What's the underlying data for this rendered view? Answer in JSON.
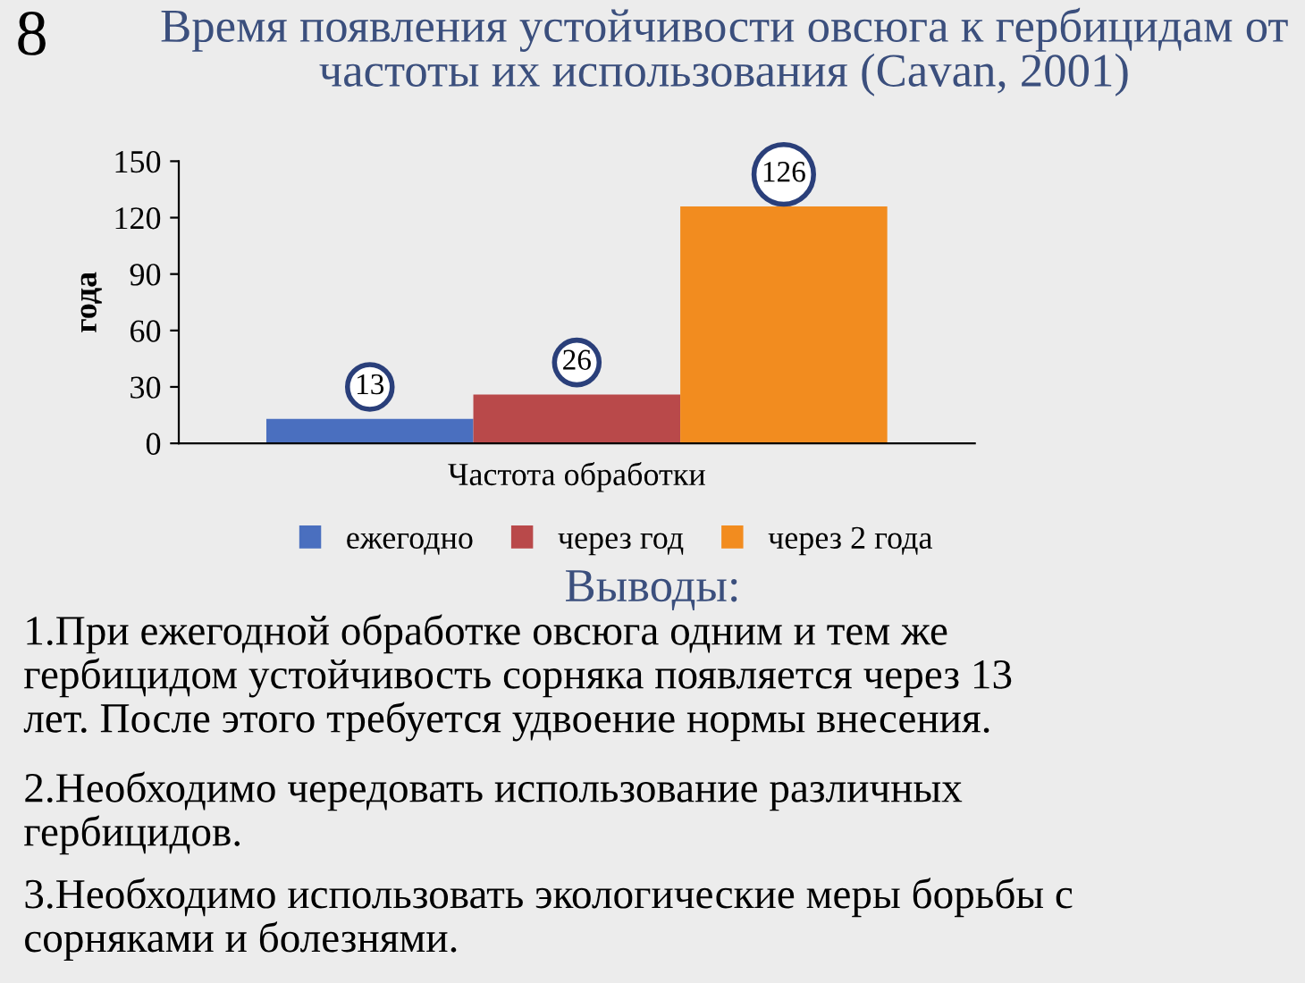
{
  "chart_data": {
    "type": "bar",
    "title": "Время появления устойчивости овсюга к гербицидам от\nчастоты их использования (Cavan, 2001)",
    "xlabel": "Частота обработки",
    "ylabel": "года",
    "categories": [
      null
    ],
    "series": [
      {
        "name": "ежегодно",
        "color": "#4a6fbf",
        "values": [
          13
        ]
      },
      {
        "name": "через год",
        "color": "#b9494a",
        "values": [
          26
        ]
      },
      {
        "name": "через 2 года",
        "color": "#f28c1f",
        "values": [
          126
        ]
      }
    ],
    "ylim": [
      0,
      150
    ],
    "yticks": [
      0,
      30,
      60,
      90,
      120,
      150
    ],
    "grid": false,
    "legend": "bottom",
    "data_labels": true,
    "annotations": [
      "8",
      "Выводы:",
      "1.При ежегодной обработке овсюга одним и тем же\nгербицидом устойчивость сорняка появляется через 13\nлет. После этого требуется удвоение нормы внесения.",
      "2.Необходимо чередовать использование различных\nгербицидов.",
      "3.Необходимо использовать экологические меры борьбы с\nсорняками и болезнями."
    ]
  }
}
